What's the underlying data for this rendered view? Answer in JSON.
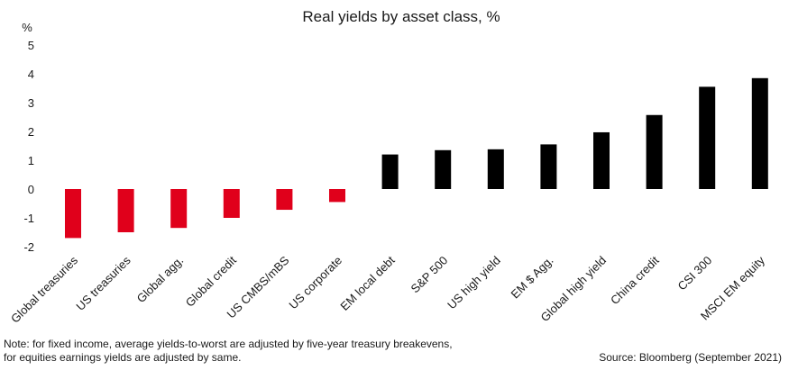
{
  "chart_data": {
    "type": "bar",
    "title": "Real yields by asset class, %",
    "ylabel": "%",
    "ylim": [
      -2,
      5
    ],
    "yticks": [
      5,
      4,
      3,
      2,
      1,
      0,
      -1,
      -2
    ],
    "grid": false,
    "categories": [
      "Global treasuries",
      "US treasuries",
      "Global agg.",
      "Global credit",
      "US CMBS/mBS",
      "US corporate",
      "EM local debt",
      "S&P 500",
      "US high yield",
      "EM $ Agg.",
      "Global high yield",
      "China credit",
      "CSI 300",
      "MSCI EM equity"
    ],
    "values": [
      -1.7,
      -1.5,
      -1.35,
      -1.0,
      -0.72,
      -0.45,
      1.2,
      1.35,
      1.38,
      1.55,
      1.97,
      2.57,
      3.55,
      3.85
    ],
    "colors": {
      "negative": "#e0001b",
      "positive": "#000000"
    }
  },
  "footer": {
    "note_line1": "Note: for fixed income, average yields-to-worst are adjusted by five-year treasury breakevens,",
    "note_line2": "for equities earnings yields are adjusted by same.",
    "source": "Source: Bloomberg (September 2021)"
  }
}
